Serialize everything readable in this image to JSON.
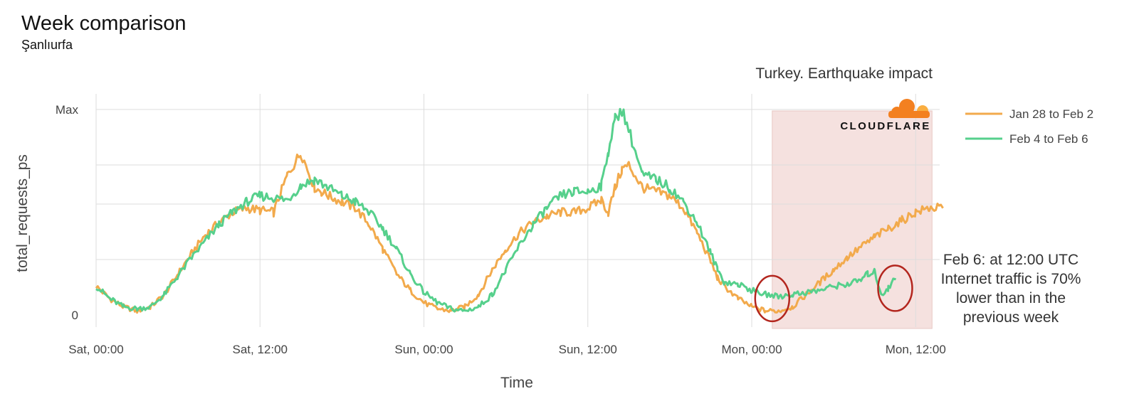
{
  "chart_data": {
    "type": "line",
    "title": "Week comparison",
    "subtitle": "Şanlıurfa",
    "annotation_title": "Turkey. Earthquake impact",
    "brand": "CLOUDFLARE",
    "xlabel": "Time",
    "ylabel": "total_requests_ps",
    "x_ticks": [
      "Sat, 00:00",
      "Sat, 12:00",
      "Sun, 00:00",
      "Sun, 12:00",
      "Mon, 00:00",
      "Mon, 12:00"
    ],
    "x_range_hours": [
      0,
      62
    ],
    "y_ticks": [
      "0",
      "Max"
    ],
    "ylim": [
      0,
      1
    ],
    "grid": true,
    "legend_position": "right",
    "highlight_hours": [
      1.5,
      13.2
    ],
    "circled_hours": [
      1.5,
      10.5
    ],
    "note": [
      "Feb 6: at 12:00 UTC",
      "Internet traffic is 70%",
      "lower than in the",
      "previous week"
    ],
    "colors": {
      "orange": "#f2aa4c",
      "green": "#56d08c",
      "highlight": "#f5e1df",
      "circle": "#b3261e",
      "grid": "#dddddd"
    },
    "series": [
      {
        "name": "Jan 28 to Feb 2",
        "color": "#f2aa4c",
        "x": [
          0,
          1,
          2,
          3,
          4,
          5,
          6,
          7,
          8,
          9,
          10,
          11,
          12,
          13,
          14,
          15,
          16,
          16.5,
          17,
          18,
          19,
          20,
          21,
          22,
          23,
          24,
          25,
          26,
          27,
          28,
          29,
          30,
          31,
          32,
          33,
          34,
          35,
          36,
          37,
          37.5,
          38,
          38.5,
          39,
          40,
          41,
          42,
          43,
          44,
          45,
          45.5,
          46,
          47,
          48,
          49,
          50,
          51,
          52,
          53,
          54,
          55,
          56,
          57,
          58,
          59,
          60,
          61,
          62
        ],
        "y": [
          0.14,
          0.08,
          0.04,
          0.02,
          0.04,
          0.1,
          0.2,
          0.3,
          0.39,
          0.45,
          0.5,
          0.52,
          0.51,
          0.5,
          0.68,
          0.79,
          0.62,
          0.6,
          0.58,
          0.55,
          0.52,
          0.44,
          0.32,
          0.2,
          0.12,
          0.06,
          0.03,
          0.02,
          0.04,
          0.1,
          0.22,
          0.32,
          0.4,
          0.45,
          0.48,
          0.5,
          0.5,
          0.52,
          0.56,
          0.5,
          0.62,
          0.71,
          0.73,
          0.62,
          0.6,
          0.58,
          0.52,
          0.4,
          0.26,
          0.18,
          0.14,
          0.08,
          0.04,
          0.02,
          0.02,
          0.04,
          0.1,
          0.16,
          0.22,
          0.28,
          0.33,
          0.38,
          0.42,
          0.46,
          0.5,
          0.52,
          0.52
        ]
      },
      {
        "name": "Feb 4 to Feb 6",
        "color": "#56d08c",
        "x": [
          0,
          1,
          2,
          3,
          4,
          5,
          6,
          7,
          8,
          9,
          10,
          11,
          12,
          13,
          14,
          15,
          16,
          17,
          18,
          19,
          20,
          21,
          22,
          23,
          24,
          25,
          26,
          27,
          28,
          29,
          30,
          31,
          32,
          33,
          34,
          35,
          36,
          37,
          37.5,
          38,
          38.5,
          39,
          40,
          41,
          42,
          43,
          44,
          45,
          45.5,
          46,
          47,
          48,
          49,
          50,
          51,
          52,
          53,
          54,
          55,
          56,
          56.5,
          57,
          57.5,
          58,
          58.5
        ],
        "y": [
          0.14,
          0.08,
          0.04,
          0.03,
          0.04,
          0.1,
          0.19,
          0.28,
          0.36,
          0.44,
          0.5,
          0.55,
          0.58,
          0.57,
          0.56,
          0.63,
          0.66,
          0.62,
          0.58,
          0.55,
          0.5,
          0.42,
          0.32,
          0.2,
          0.11,
          0.06,
          0.03,
          0.02,
          0.04,
          0.1,
          0.22,
          0.34,
          0.44,
          0.52,
          0.58,
          0.6,
          0.6,
          0.63,
          0.8,
          0.95,
          1.0,
          0.9,
          0.68,
          0.66,
          0.62,
          0.55,
          0.45,
          0.3,
          0.22,
          0.16,
          0.15,
          0.12,
          0.1,
          0.09,
          0.1,
          0.11,
          0.12,
          0.14,
          0.15,
          0.17,
          0.2,
          0.21,
          0.1,
          0.13,
          0.18
        ]
      }
    ]
  }
}
